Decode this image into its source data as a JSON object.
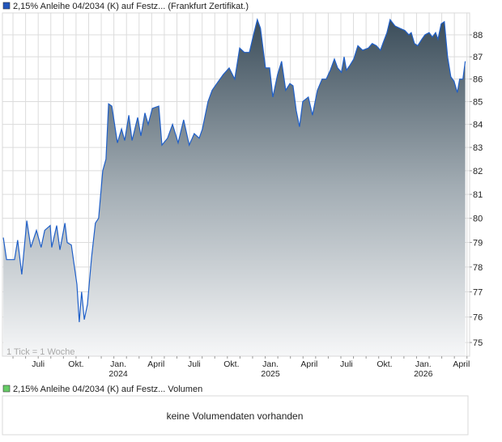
{
  "chart_data": {
    "type": "area",
    "title": "2,15% Anleihe 04/2034 (K) auf Festz... (Frankfurt Zertifikat.)",
    "series_color": "#1f5fc8",
    "yscale": "log",
    "ylim": [
      74.6,
      89
    ],
    "yticks": [
      75,
      76,
      77,
      78,
      79,
      80,
      81,
      82,
      83,
      84,
      85,
      86,
      87,
      88
    ],
    "x_unit": "weeks since start (approx. late April 2023)",
    "xlim": [
      0,
      159.3
    ],
    "xticks": [
      {
        "week": 12.2,
        "label": "Juli",
        "year": ""
      },
      {
        "week": 25.1,
        "label": "Okt.",
        "year": ""
      },
      {
        "week": 39.5,
        "label": "Jan.",
        "year": "2024"
      },
      {
        "week": 52.4,
        "label": "April",
        "year": ""
      },
      {
        "week": 65.4,
        "label": "Juli",
        "year": ""
      },
      {
        "week": 78.1,
        "label": "Okt.",
        "year": ""
      },
      {
        "week": 91.4,
        "label": "Jan.",
        "year": "2025"
      },
      {
        "week": 104.6,
        "label": "April",
        "year": ""
      },
      {
        "week": 117.3,
        "label": "Juli",
        "year": ""
      },
      {
        "week": 130.3,
        "label": "Okt.",
        "year": ""
      },
      {
        "week": 143.5,
        "label": "Jan.",
        "year": "2026"
      },
      {
        "week": 156.5,
        "label": "April",
        "year": ""
      }
    ],
    "points": [
      [
        0.3,
        79.2
      ],
      [
        1.4,
        78.3
      ],
      [
        4.1,
        78.3
      ],
      [
        5.2,
        79.1
      ],
      [
        6.6,
        77.7
      ],
      [
        8.3,
        79.9
      ],
      [
        9.7,
        78.8
      ],
      [
        11.6,
        79.5
      ],
      [
        13.2,
        78.8
      ],
      [
        14.4,
        79.5
      ],
      [
        16.3,
        79.7
      ],
      [
        16.8,
        78.8
      ],
      [
        18.5,
        79.7
      ],
      [
        19.6,
        78.7
      ],
      [
        21.3,
        79.8
      ],
      [
        22.1,
        79.0
      ],
      [
        23.5,
        78.9
      ],
      [
        25.4,
        77.3
      ],
      [
        26.2,
        75.8
      ],
      [
        27.0,
        77.0
      ],
      [
        27.9,
        75.9
      ],
      [
        29.0,
        76.5
      ],
      [
        30.4,
        78.4
      ],
      [
        31.7,
        79.8
      ],
      [
        32.8,
        80.0
      ],
      [
        34.2,
        82.0
      ],
      [
        35.3,
        82.5
      ],
      [
        36.2,
        84.9
      ],
      [
        37.3,
        84.8
      ],
      [
        39.2,
        83.2
      ],
      [
        40.6,
        83.8
      ],
      [
        41.7,
        83.3
      ],
      [
        43.1,
        84.4
      ],
      [
        44.2,
        83.3
      ],
      [
        46.1,
        84.3
      ],
      [
        47.2,
        83.5
      ],
      [
        48.6,
        84.5
      ],
      [
        49.7,
        84.0
      ],
      [
        51.1,
        84.7
      ],
      [
        53.3,
        84.8
      ],
      [
        54.4,
        83.1
      ],
      [
        56.3,
        83.4
      ],
      [
        58.0,
        84.0
      ],
      [
        59.9,
        83.2
      ],
      [
        61.8,
        84.2
      ],
      [
        63.7,
        83.1
      ],
      [
        65.4,
        83.6
      ],
      [
        67.1,
        83.4
      ],
      [
        68.2,
        83.8
      ],
      [
        70.1,
        85.0
      ],
      [
        71.5,
        85.5
      ],
      [
        73.1,
        85.8
      ],
      [
        75.3,
        86.2
      ],
      [
        77.3,
        86.5
      ],
      [
        79.2,
        86.0
      ],
      [
        80.9,
        87.4
      ],
      [
        82.5,
        87.2
      ],
      [
        84.2,
        87.2
      ],
      [
        85.6,
        88.0
      ],
      [
        86.9,
        88.7
      ],
      [
        88.0,
        88.3
      ],
      [
        89.7,
        86.5
      ],
      [
        91.1,
        86.5
      ],
      [
        92.2,
        85.2
      ],
      [
        93.8,
        86.2
      ],
      [
        95.2,
        86.8
      ],
      [
        96.6,
        85.5
      ],
      [
        98.0,
        85.8
      ],
      [
        99.1,
        85.7
      ],
      [
        100.2,
        84.6
      ],
      [
        101.3,
        83.9
      ],
      [
        102.4,
        85.0
      ],
      [
        104.3,
        85.2
      ],
      [
        105.7,
        84.4
      ],
      [
        107.4,
        85.5
      ],
      [
        109.0,
        86.0
      ],
      [
        110.4,
        86.0
      ],
      [
        111.8,
        86.4
      ],
      [
        113.2,
        86.9
      ],
      [
        114.3,
        86.5
      ],
      [
        115.6,
        86.3
      ],
      [
        116.5,
        87.0
      ],
      [
        117.3,
        86.4
      ],
      [
        118.4,
        86.6
      ],
      [
        119.8,
        86.9
      ],
      [
        121.2,
        87.5
      ],
      [
        122.8,
        87.3
      ],
      [
        124.8,
        87.4
      ],
      [
        126.1,
        87.6
      ],
      [
        127.5,
        87.5
      ],
      [
        128.9,
        87.3
      ],
      [
        129.7,
        87.6
      ],
      [
        131.1,
        88.1
      ],
      [
        132.2,
        88.7
      ],
      [
        133.9,
        88.4
      ],
      [
        135.5,
        88.3
      ],
      [
        137.2,
        88.2
      ],
      [
        138.6,
        88.0
      ],
      [
        139.4,
        88.1
      ],
      [
        140.5,
        87.6
      ],
      [
        141.6,
        87.5
      ],
      [
        143.0,
        87.8
      ],
      [
        144.1,
        88.0
      ],
      [
        145.5,
        88.1
      ],
      [
        146.6,
        87.9
      ],
      [
        147.7,
        88.1
      ],
      [
        148.5,
        87.8
      ],
      [
        149.6,
        88.5
      ],
      [
        150.7,
        88.6
      ],
      [
        151.8,
        87.0
      ],
      [
        152.9,
        86.1
      ],
      [
        154.0,
        85.9
      ],
      [
        155.1,
        85.4
      ],
      [
        155.9,
        86.0
      ],
      [
        157.0,
        86.0
      ],
      [
        157.8,
        86.8
      ]
    ],
    "annotation": "1 Tick = 1 Woche",
    "volume_legend": "2,15% Anleihe 04/2034 (K) auf Festz... Volumen",
    "volume_message": "keine Volumendaten vorhanden",
    "legend_color": "#2255bb",
    "volume_legend_color": "#66cc66"
  }
}
